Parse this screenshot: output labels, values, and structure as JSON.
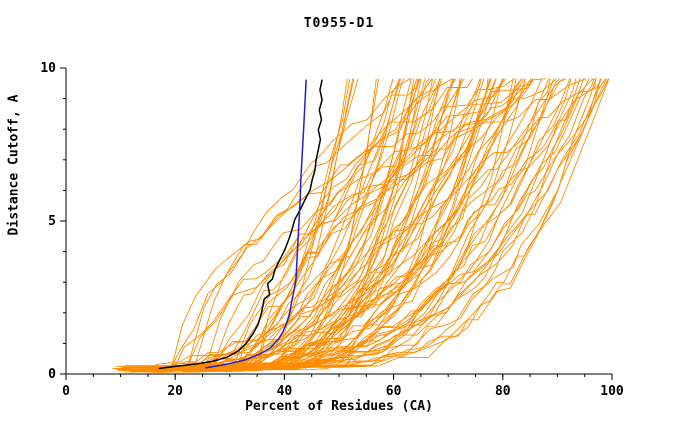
{
  "chart_data": {
    "type": "line",
    "title": "T0955-D1",
    "xlabel": "Percent of Residues (CA)",
    "ylabel": "Distance Cutoff, A",
    "xlim": [
      0,
      100
    ],
    "ylim": [
      0,
      10
    ],
    "xticks": [
      0,
      20,
      40,
      60,
      80,
      100
    ],
    "yticks": [
      0,
      5,
      10
    ],
    "x_minor_step": 5,
    "y_minor_step": 1,
    "grid": false,
    "legend": "none",
    "axis_color": "#000000",
    "series": [
      {
        "name": "highlighted-model-black",
        "color": "#000000",
        "width": 1.5,
        "points": [
          [
            17,
            0.18
          ],
          [
            20,
            0.25
          ],
          [
            24,
            0.33
          ],
          [
            27,
            0.42
          ],
          [
            29.5,
            0.55
          ],
          [
            31.5,
            0.75
          ],
          [
            33,
            1.0
          ],
          [
            34.2,
            1.3
          ],
          [
            35.2,
            1.62
          ],
          [
            35.8,
            2.0
          ],
          [
            36.3,
            2.45
          ],
          [
            37.3,
            2.6
          ],
          [
            36.9,
            2.95
          ],
          [
            37.8,
            3.1
          ],
          [
            38.3,
            3.42
          ],
          [
            39.2,
            3.75
          ],
          [
            40.1,
            4.07
          ],
          [
            40.8,
            4.4
          ],
          [
            41.4,
            4.72
          ],
          [
            41.9,
            5.05
          ],
          [
            42.9,
            5.37
          ],
          [
            43.8,
            5.7
          ],
          [
            44.7,
            6.02
          ],
          [
            45.1,
            6.35
          ],
          [
            45.6,
            6.67
          ],
          [
            45.8,
            7.0
          ],
          [
            46.2,
            7.33
          ],
          [
            46.6,
            7.66
          ],
          [
            46.2,
            7.98
          ],
          [
            46.8,
            8.31
          ],
          [
            46.4,
            8.63
          ],
          [
            46.9,
            8.96
          ],
          [
            46.5,
            9.28
          ],
          [
            46.9,
            9.62
          ]
        ]
      },
      {
        "name": "highlighted-model-blue",
        "color": "#2222cc",
        "width": 1.5,
        "points": [
          [
            25.5,
            0.2
          ],
          [
            29,
            0.3
          ],
          [
            32.8,
            0.46
          ],
          [
            35.5,
            0.65
          ],
          [
            37.4,
            0.85
          ],
          [
            38.8,
            1.11
          ],
          [
            39.7,
            1.37
          ],
          [
            40.5,
            1.7
          ],
          [
            41,
            2.03
          ],
          [
            41.4,
            2.42
          ],
          [
            41.8,
            2.75
          ],
          [
            42.1,
            3.08
          ],
          [
            42.3,
            3.73
          ],
          [
            42.5,
            4.38
          ],
          [
            42.7,
            5.03
          ],
          [
            42.9,
            5.69
          ],
          [
            43,
            6.34
          ],
          [
            43.2,
            7.0
          ],
          [
            43.4,
            7.65
          ],
          [
            43.6,
            8.3
          ],
          [
            43.8,
            8.95
          ],
          [
            44,
            9.62
          ]
        ]
      }
    ],
    "ensemble": {
      "name": "other-models",
      "color": "#ff8c00",
      "width": 0.9,
      "count": 90,
      "seed": 11,
      "x_start_min": 8.5,
      "x_start_max": 31,
      "x_top_min": 51,
      "x_top_max": 100,
      "y_top": 9.65,
      "shape_exp_min": 1.8,
      "shape_exp_max": 4.6,
      "shallow_fraction": 0.18,
      "step": 2.6
    }
  }
}
